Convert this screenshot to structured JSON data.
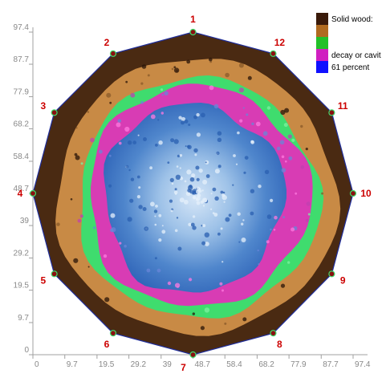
{
  "chart_data": {
    "type": "heatmap",
    "title": "",
    "xlabel": "",
    "ylabel": "",
    "xlim": [
      0,
      97.4
    ],
    "ylim": [
      0,
      97.4
    ],
    "x_ticks": [
      "0",
      "9.7",
      "19.5",
      "29.2",
      "39",
      "48.7",
      "58.4",
      "68.2",
      "77.9",
      "87.7",
      "97.4"
    ],
    "y_ticks": [
      "0",
      "9.7",
      "19.5",
      "29.2",
      "39",
      "48.7",
      "58.4",
      "68.2",
      "77.9",
      "87.7",
      "97.4"
    ],
    "sensors": [
      {
        "label": "1",
        "x": 48.7,
        "y": 97.4
      },
      {
        "label": "2",
        "x": 24.4,
        "y": 90.9
      },
      {
        "label": "3",
        "x": 6.5,
        "y": 73.1
      },
      {
        "label": "4",
        "x": 0.0,
        "y": 48.7
      },
      {
        "label": "5",
        "x": 6.5,
        "y": 24.4
      },
      {
        "label": "6",
        "x": 24.4,
        "y": 6.5
      },
      {
        "label": "7",
        "x": 48.7,
        "y": 0.0
      },
      {
        "label": "8",
        "x": 73.1,
        "y": 6.5
      },
      {
        "label": "9",
        "x": 90.9,
        "y": 24.4
      },
      {
        "label": "10",
        "x": 97.4,
        "y": 48.7
      },
      {
        "label": "11",
        "x": 90.9,
        "y": 73.1
      },
      {
        "label": "12",
        "x": 73.1,
        "y": 90.9
      }
    ],
    "legend": {
      "placement": "top-right",
      "colors": [
        "#3a1a0a",
        "#b06a20",
        "#22c028",
        "#d020c0",
        "#1010ff"
      ],
      "lines": [
        "Solid wood:",
        "decay or cavit",
        " 61 percent"
      ]
    },
    "zones": [
      {
        "name": "outer-dark",
        "color": "#4a2a12"
      },
      {
        "name": "orange",
        "color": "#c88a45"
      },
      {
        "name": "green",
        "color": "#3fdc6e"
      },
      {
        "name": "magenta",
        "color": "#d83cb4"
      },
      {
        "name": "blue",
        "color": "#3a72c0"
      },
      {
        "name": "light-blue",
        "color": "#c0d8f0"
      }
    ]
  }
}
